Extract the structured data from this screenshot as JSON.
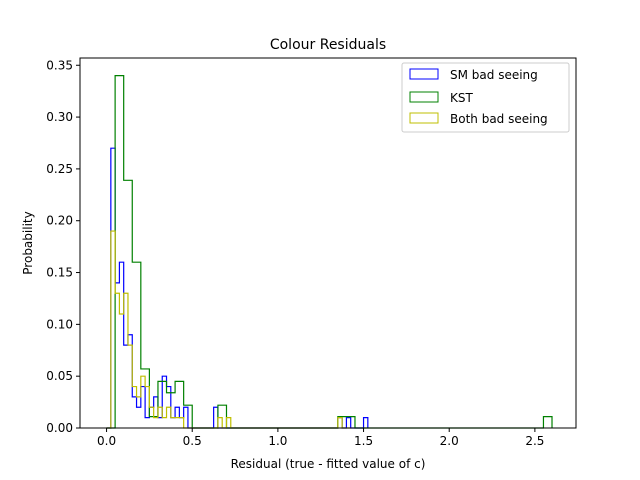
{
  "chart_data": {
    "type": "histogram",
    "title": "Colour Residuals",
    "xlabel": "Residual (true - fitted value of c)",
    "ylabel": "Probability",
    "xlim": [
      -0.155,
      2.74
    ],
    "ylim": [
      0,
      0.357
    ],
    "xticks": [
      0.0,
      0.5,
      1.0,
      1.5,
      2.0,
      2.5
    ],
    "xtick_labels": [
      "0.0",
      "0.5",
      "1.0",
      "1.5",
      "2.0",
      "2.5"
    ],
    "yticks": [
      0.0,
      0.05,
      0.1,
      0.15,
      0.2,
      0.25,
      0.3,
      0.35
    ],
    "ytick_labels": [
      "0.00",
      "0.05",
      "0.10",
      "0.15",
      "0.20",
      "0.25",
      "0.30",
      "0.35"
    ],
    "grid": false,
    "legend_position": "top-right",
    "series": [
      {
        "name": "SM bad seeing",
        "color": "#0000ff",
        "x": [
          0.0,
          0.025,
          0.05,
          0.075,
          0.1,
          0.125,
          0.15,
          0.175,
          0.2,
          0.225,
          0.25,
          0.275,
          0.3,
          0.325,
          0.35,
          0.375,
          0.4,
          0.425,
          0.45,
          0.475,
          0.5,
          0.625,
          0.65,
          0.675,
          1.35,
          1.375,
          1.4,
          1.425,
          1.5,
          1.525
        ],
        "y": [
          0.0,
          0.27,
          0.14,
          0.16,
          0.08,
          0.09,
          0.03,
          0.02,
          0.04,
          0.01,
          0.02,
          0.03,
          0.01,
          0.05,
          0.04,
          0.01,
          0.02,
          0.01,
          0.02,
          0.0,
          0.0,
          0.02,
          0.0,
          0.0,
          0.01,
          0.0,
          0.01,
          0.0,
          0.01,
          0.0
        ]
      },
      {
        "name": "KST",
        "color": "#008000",
        "x": [
          0.0,
          0.05,
          0.1,
          0.15,
          0.2,
          0.25,
          0.3,
          0.35,
          0.4,
          0.45,
          0.5,
          0.6,
          0.65,
          0.7,
          1.35,
          1.4,
          1.45,
          2.55,
          2.6
        ],
        "y": [
          0.0,
          0.34,
          0.239,
          0.16,
          0.057,
          0.011,
          0.045,
          0.034,
          0.045,
          0.022,
          0.0,
          0.0,
          0.022,
          0.0,
          0.011,
          0.011,
          0.0,
          0.011,
          0.0
        ]
      },
      {
        "name": "Both bad seeing",
        "color": "#bfbf00",
        "x": [
          0.0,
          0.025,
          0.05,
          0.075,
          0.1,
          0.125,
          0.15,
          0.175,
          0.2,
          0.225,
          0.25,
          0.275,
          0.3,
          0.325,
          0.35,
          0.375,
          0.4,
          0.425,
          0.45,
          0.475,
          0.5,
          0.625,
          0.65,
          0.675,
          0.7,
          0.725,
          0.75,
          1.325,
          1.35,
          1.375,
          1.4,
          1.425
        ],
        "y": [
          0.0,
          0.19,
          0.13,
          0.11,
          0.13,
          0.08,
          0.04,
          0.03,
          0.05,
          0.04,
          0.02,
          0.01,
          0.02,
          0.01,
          0.02,
          0.01,
          0.01,
          0.01,
          0.0,
          0.0,
          0.0,
          0.0,
          0.01,
          0.0,
          0.01,
          0.0,
          0.0,
          0.0,
          0.01,
          0.0,
          0.0,
          0.0
        ]
      }
    ]
  }
}
